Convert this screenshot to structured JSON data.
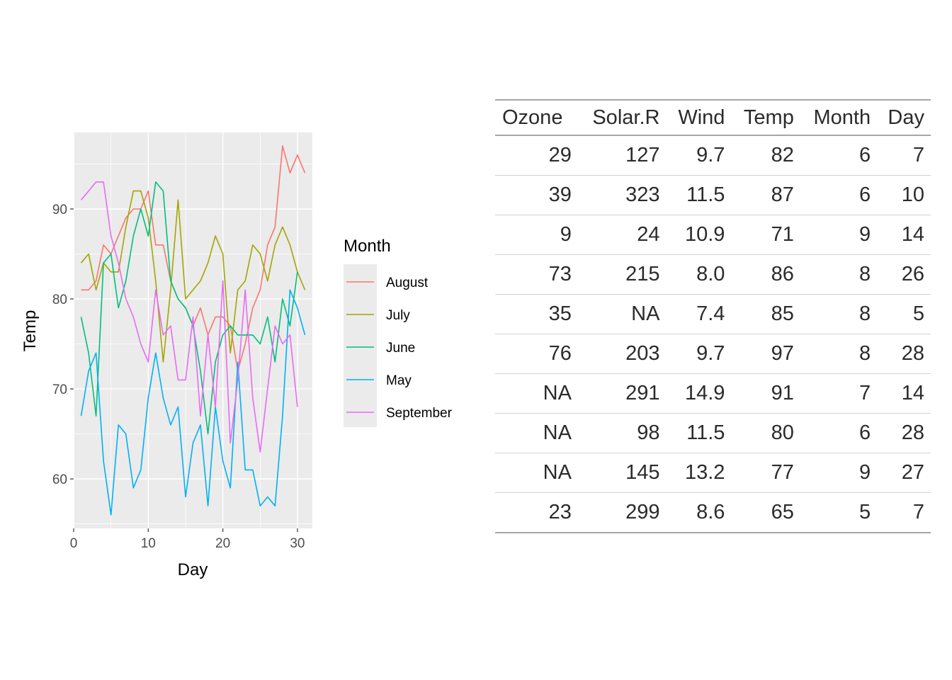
{
  "chart_data": {
    "type": "line",
    "xlabel": "Day",
    "ylabel": "Temp",
    "xlim": [
      0,
      32
    ],
    "ylim": [
      54.5,
      98.5
    ],
    "xticks": [
      0,
      10,
      20,
      30
    ],
    "yticks": [
      60,
      70,
      80,
      90
    ],
    "grid": true,
    "legend_title": "Month",
    "legend_position": "right",
    "series": [
      {
        "name": "August",
        "color": "#F8766D",
        "x": [
          1,
          2,
          3,
          4,
          5,
          6,
          7,
          8,
          9,
          10,
          11,
          12,
          13,
          14,
          15,
          16,
          17,
          18,
          19,
          20,
          21,
          22,
          23,
          24,
          25,
          26,
          27,
          28,
          29,
          30,
          31
        ],
        "y": [
          81,
          81,
          82,
          86,
          85,
          87,
          89,
          90,
          90,
          92,
          86,
          86,
          82,
          80,
          79,
          77,
          79,
          76,
          78,
          78,
          77,
          72,
          75,
          79,
          81,
          86,
          88,
          97,
          94,
          96,
          94
        ]
      },
      {
        "name": "July",
        "color": "#A3A500",
        "x": [
          1,
          2,
          3,
          4,
          5,
          6,
          7,
          8,
          9,
          10,
          11,
          12,
          13,
          14,
          15,
          16,
          17,
          18,
          19,
          20,
          21,
          22,
          23,
          24,
          25,
          26,
          27,
          28,
          29,
          30,
          31
        ],
        "y": [
          84,
          85,
          81,
          84,
          83,
          83,
          88,
          92,
          92,
          89,
          82,
          73,
          81,
          91,
          80,
          81,
          82,
          84,
          87,
          85,
          74,
          81,
          82,
          86,
          85,
          82,
          86,
          88,
          86,
          83,
          81
        ]
      },
      {
        "name": "June",
        "color": "#00BF7D",
        "x": [
          1,
          2,
          3,
          4,
          5,
          6,
          7,
          8,
          9,
          10,
          11,
          12,
          13,
          14,
          15,
          16,
          17,
          18,
          19,
          20,
          21,
          22,
          23,
          24,
          25,
          26,
          27,
          28,
          29,
          30
        ],
        "y": [
          78,
          74,
          67,
          84,
          85,
          79,
          82,
          87,
          90,
          87,
          93,
          92,
          82,
          80,
          79,
          77,
          72,
          65,
          73,
          76,
          77,
          76,
          76,
          76,
          75,
          78,
          73,
          80,
          77,
          83
        ]
      },
      {
        "name": "May",
        "color": "#00B0F6",
        "x": [
          1,
          2,
          3,
          4,
          5,
          6,
          7,
          8,
          9,
          10,
          11,
          12,
          13,
          14,
          15,
          16,
          17,
          18,
          19,
          20,
          21,
          22,
          23,
          24,
          25,
          26,
          27,
          28,
          29,
          30,
          31
        ],
        "y": [
          67,
          72,
          74,
          62,
          56,
          66,
          65,
          59,
          61,
          69,
          74,
          69,
          66,
          68,
          58,
          64,
          66,
          57,
          68,
          62,
          59,
          73,
          61,
          61,
          57,
          58,
          57,
          67,
          81,
          79,
          76
        ]
      },
      {
        "name": "September",
        "color": "#E76BF3",
        "x": [
          1,
          2,
          3,
          4,
          5,
          6,
          7,
          8,
          9,
          10,
          11,
          12,
          13,
          14,
          15,
          16,
          17,
          18,
          19,
          20,
          21,
          22,
          23,
          24,
          25,
          26,
          27,
          28,
          29,
          30
        ],
        "y": [
          91,
          92,
          93,
          93,
          87,
          84,
          80,
          78,
          75,
          73,
          81,
          76,
          77,
          71,
          71,
          78,
          67,
          76,
          68,
          82,
          64,
          71,
          81,
          69,
          63,
          70,
          77,
          75,
          76,
          68
        ]
      }
    ]
  },
  "table": {
    "headers": [
      "Ozone",
      "Solar.R",
      "Wind",
      "Temp",
      "Month",
      "Day"
    ],
    "rows": [
      [
        "29",
        "127",
        "9.7",
        "82",
        "6",
        "7"
      ],
      [
        "39",
        "323",
        "11.5",
        "87",
        "6",
        "10"
      ],
      [
        "9",
        "24",
        "10.9",
        "71",
        "9",
        "14"
      ],
      [
        "73",
        "215",
        "8.0",
        "86",
        "8",
        "26"
      ],
      [
        "35",
        "NA",
        "7.4",
        "85",
        "8",
        "5"
      ],
      [
        "76",
        "203",
        "9.7",
        "97",
        "8",
        "28"
      ],
      [
        "NA",
        "291",
        "14.9",
        "91",
        "7",
        "14"
      ],
      [
        "NA",
        "98",
        "11.5",
        "80",
        "6",
        "28"
      ],
      [
        "NA",
        "145",
        "13.2",
        "77",
        "9",
        "27"
      ],
      [
        "23",
        "299",
        "8.6",
        "65",
        "5",
        "7"
      ]
    ]
  }
}
